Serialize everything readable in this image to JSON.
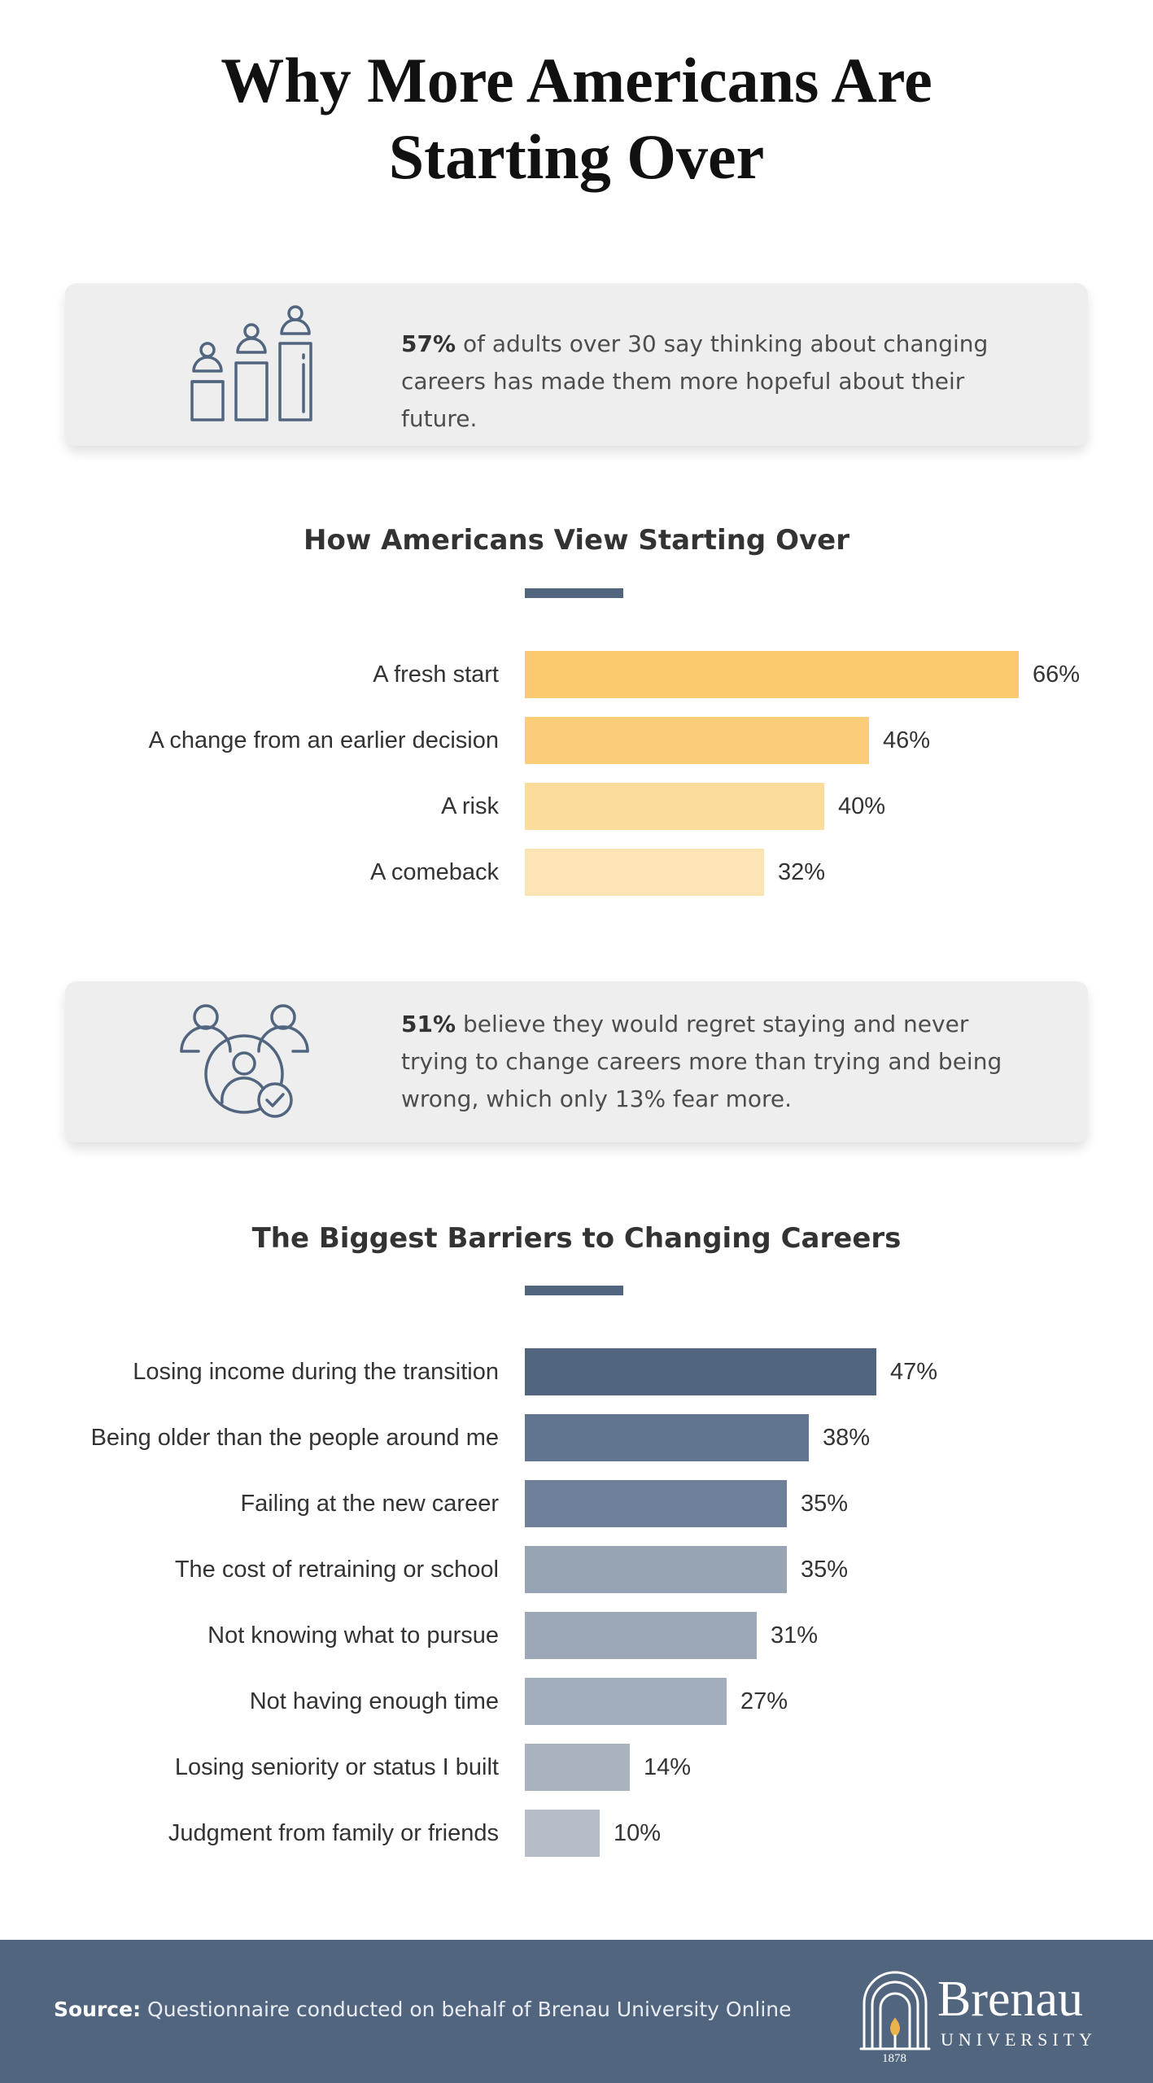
{
  "title": {
    "line1": "Why More Americans Are",
    "line2": "Starting Over"
  },
  "stat1": {
    "highlight": "57%",
    "text": "of adults over 30 say thinking about changing careers has made them more hopeful about their future.",
    "icon": "career-ladder-people-icon"
  },
  "stat2": {
    "highlight": "51%",
    "text": "believe they would regret staying and never trying to change careers more than trying and being wrong, which only 13% fear more.",
    "icon": "group-people-check-icon"
  },
  "chart_data": [
    {
      "type": "bar",
      "orientation": "horizontal",
      "title": "How Americans View Starting Over",
      "categories": [
        "A fresh start",
        "A change from an earlier decision",
        "A risk",
        "A comeback"
      ],
      "values": [
        66,
        46,
        40,
        32
      ],
      "value_labels": [
        "66%",
        "46%",
        "40%",
        "32%"
      ],
      "colors": [
        "#fac970",
        "#fbcd78",
        "#fcdc9c",
        "#fde4b5"
      ],
      "xlim": [
        0,
        66
      ]
    },
    {
      "type": "bar",
      "orientation": "horizontal",
      "title": "The Biggest Barriers to Changing Careers",
      "categories": [
        "Losing income during the transition",
        "Being older than the people around me",
        "Failing at the new career",
        "The cost of retraining or school",
        "Not knowing what to pursue",
        "Not having enough time",
        "Losing seniority or status I built",
        "Judgment from family or friends"
      ],
      "values": [
        47,
        38,
        35,
        35,
        31,
        27,
        14,
        10
      ],
      "value_labels": [
        "47%",
        "38%",
        "35%",
        "35%",
        "31%",
        "27%",
        "14%",
        "10%"
      ],
      "colors": [
        "#51657f",
        "#627590",
        "#6f809a",
        "#97a4b4",
        "#9ca8b7",
        "#a2aebc",
        "#a9b3c0",
        "#b5bdc9"
      ],
      "xlim": [
        0,
        66
      ]
    }
  ],
  "footer": {
    "source_label": "Source:",
    "source_text": "Questionnaire conducted on behalf of Brenau University Online",
    "logo_name": "Brenau",
    "logo_sub": "UNIVERSITY",
    "logo_year": "1878"
  }
}
